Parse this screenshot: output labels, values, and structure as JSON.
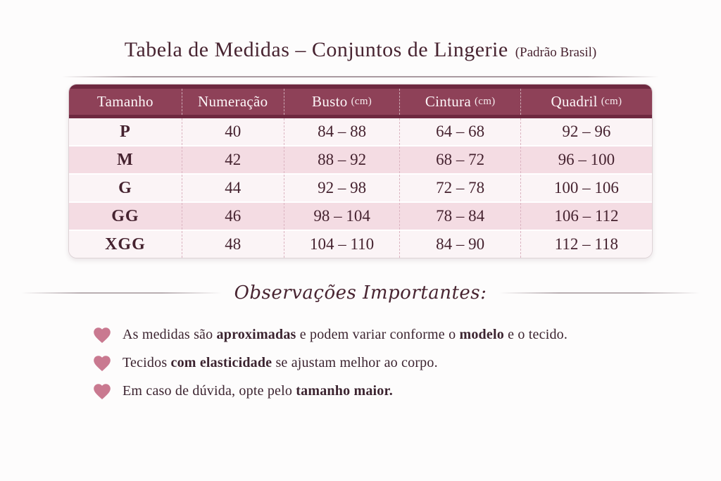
{
  "title": {
    "main": "Tabela de Medidas – Conjuntos de Lingerie",
    "suffix": "(Padrão Brasil)"
  },
  "table": {
    "headers": [
      {
        "label": "Tamanho",
        "unit": ""
      },
      {
        "label": "Numeração",
        "unit": ""
      },
      {
        "label": "Busto",
        "unit": "(cm)"
      },
      {
        "label": "Cintura",
        "unit": "(cm)"
      },
      {
        "label": "Quadril",
        "unit": "(cm)"
      }
    ],
    "rows": [
      [
        "P",
        "40",
        "84 – 88",
        "64 – 68",
        "92 – 96"
      ],
      [
        "M",
        "42",
        "88 – 92",
        "68 – 72",
        "96 – 100"
      ],
      [
        "G",
        "44",
        "92 – 98",
        "72 – 78",
        "100 – 106"
      ],
      [
        "GG",
        "46",
        "98 – 104",
        "78 – 84",
        "106 – 112"
      ],
      [
        "XGG",
        "48",
        "104 – 110",
        "84 – 90",
        "112 – 118"
      ]
    ]
  },
  "notes_heading": "Observações Importantes:",
  "notes": [
    {
      "icon": "heart-icon",
      "segments": [
        {
          "text": "As medidas são ",
          "bold": false
        },
        {
          "text": "aproximadas",
          "bold": true
        },
        {
          "text": " e podem variar conforme o ",
          "bold": false
        },
        {
          "text": "modelo",
          "bold": true
        },
        {
          "text": " e o tecido.",
          "bold": false
        }
      ]
    },
    {
      "icon": "heart-icon",
      "segments": [
        {
          "text": "Tecidos ",
          "bold": false
        },
        {
          "text": "com elasticidade",
          "bold": true
        },
        {
          "text": " se ajustam melhor ao corpo.",
          "bold": false
        }
      ]
    },
    {
      "icon": "heart-icon",
      "segments": [
        {
          "text": "Em caso de dúvida, opte pelo ",
          "bold": false
        },
        {
          "text": "tamanho maior.",
          "bold": true
        }
      ]
    }
  ],
  "colors": {
    "header_bg": "#8e4158",
    "header_edge": "#6e2940",
    "row_light": "#fbf4f6",
    "row_pink": "#f4dce3",
    "table_text": "#45222f",
    "title_text": "#482431",
    "note_text": "#3c2430",
    "heart": "#c97990",
    "divider": "#aa9aa0"
  }
}
